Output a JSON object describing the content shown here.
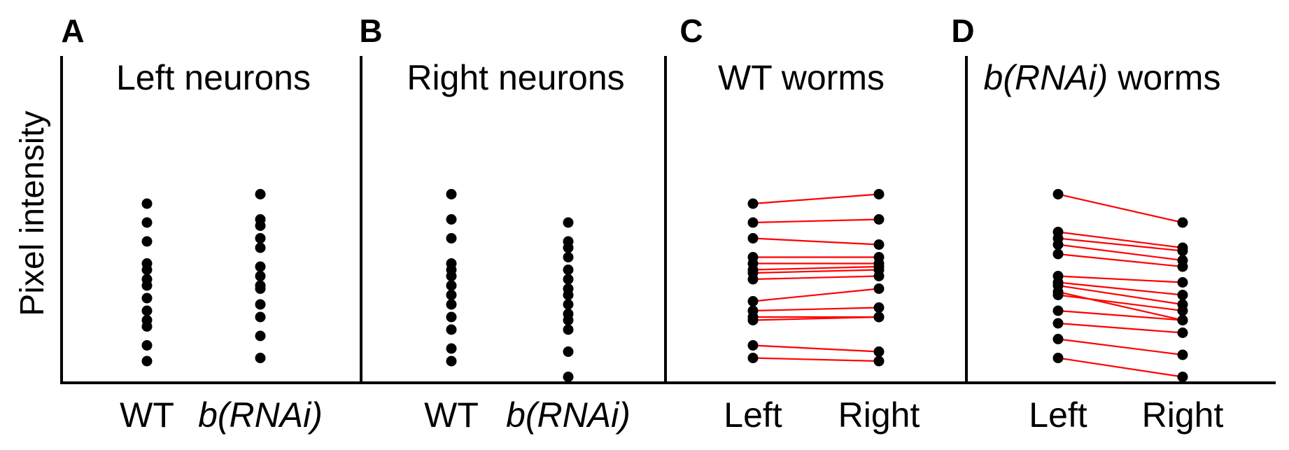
{
  "figure": {
    "ylabel": "Pixel intensity",
    "colors": {
      "point": "#000000",
      "pair_line": "#ff0000",
      "axis": "#000000"
    }
  },
  "chart_data": [
    {
      "id": "A",
      "type": "scatter",
      "letter": "A",
      "title": "Left neurons",
      "title_italic": "",
      "ylabel": "Pixel intensity",
      "ylim": [
        0,
        100
      ],
      "paired": false,
      "categories": [
        {
          "label": "WT",
          "italic": false,
          "values": [
            62,
            56,
            50,
            43,
            41,
            38,
            36,
            32,
            28,
            25,
            23,
            17,
            12
          ]
        },
        {
          "label": "b(RNAi)",
          "italic": true,
          "values": [
            65,
            57,
            55,
            51,
            48,
            42,
            39,
            36,
            35,
            30,
            26,
            20,
            13
          ]
        }
      ]
    },
    {
      "id": "B",
      "type": "scatter",
      "letter": "B",
      "title": "Right neurons",
      "title_italic": "",
      "ylabel": "",
      "ylim": [
        0,
        100
      ],
      "paired": false,
      "categories": [
        {
          "label": "WT",
          "italic": false,
          "values": [
            65,
            57,
            51,
            43,
            41,
            39,
            36,
            33,
            30,
            26,
            22,
            16,
            12
          ]
        },
        {
          "label": "b(RNAi)",
          "italic": true,
          "values": [
            56,
            50,
            48,
            45,
            41,
            38,
            35,
            33,
            30,
            27,
            25,
            22,
            15,
            7
          ]
        }
      ]
    },
    {
      "id": "C",
      "type": "line",
      "letter": "C",
      "title": " worms",
      "title_italic": "WT",
      "title_italic_is_plain": true,
      "ylabel": "",
      "ylim": [
        0,
        100
      ],
      "paired": true,
      "categories": [
        {
          "label": "Left",
          "italic": false
        },
        {
          "label": "Right",
          "italic": false
        }
      ],
      "x": [
        "Left",
        "Right"
      ],
      "series": [
        {
          "values": [
            62,
            65
          ]
        },
        {
          "values": [
            56,
            57
          ]
        },
        {
          "values": [
            51,
            49
          ]
        },
        {
          "values": [
            45,
            45
          ]
        },
        {
          "values": [
            43,
            43
          ]
        },
        {
          "values": [
            41,
            42
          ]
        },
        {
          "values": [
            40,
            41
          ]
        },
        {
          "values": [
            38,
            39
          ]
        },
        {
          "values": [
            31,
            35
          ]
        },
        {
          "values": [
            28,
            29
          ]
        },
        {
          "values": [
            26,
            26
          ]
        },
        {
          "values": [
            25,
            26
          ]
        },
        {
          "values": [
            17,
            15
          ]
        },
        {
          "values": [
            13,
            12
          ]
        }
      ]
    },
    {
      "id": "D",
      "type": "line",
      "letter": "D",
      "title": " worms",
      "title_italic": "b(RNAi)",
      "ylabel": "",
      "ylim": [
        0,
        100
      ],
      "paired": true,
      "categories": [
        {
          "label": "Left",
          "italic": false
        },
        {
          "label": "Right",
          "italic": false
        }
      ],
      "x": [
        "Left",
        "Right"
      ],
      "series": [
        {
          "values": [
            65,
            56
          ]
        },
        {
          "values": [
            53,
            48
          ]
        },
        {
          "values": [
            51,
            47
          ]
        },
        {
          "values": [
            49,
            44
          ]
        },
        {
          "values": [
            46,
            42
          ]
        },
        {
          "values": [
            39,
            37
          ]
        },
        {
          "values": [
            37,
            33
          ]
        },
        {
          "values": [
            36,
            30
          ]
        },
        {
          "values": [
            34,
            25
          ]
        },
        {
          "values": [
            33,
            28
          ]
        },
        {
          "values": [
            28,
            25
          ]
        },
        {
          "values": [
            24,
            21
          ]
        },
        {
          "values": [
            19,
            14
          ]
        },
        {
          "values": [
            13,
            7
          ]
        }
      ]
    }
  ]
}
